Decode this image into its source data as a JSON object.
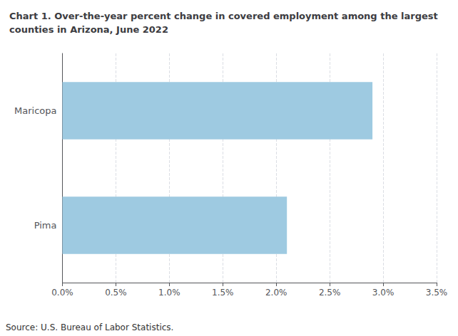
{
  "chart_data": {
    "type": "bar",
    "orientation": "horizontal",
    "title": "Chart 1. Over-the-year percent change in covered employment among the largest\ncounties in Arizona, June 2022",
    "annotations": [
      "Source: U.S. Bureau of Labor Statistics."
    ],
    "categories": [
      "Pima",
      "Maricopa"
    ],
    "values": [
      0.021,
      0.029
    ],
    "color": "#9ECAE1",
    "xlim": [
      0.0,
      0.035
    ],
    "xticks": [
      {
        "value": 0.0,
        "label": "0.0%"
      },
      {
        "value": 0.005,
        "label": "0.5%"
      },
      {
        "value": 0.01,
        "label": "1.0%"
      },
      {
        "value": 0.015,
        "label": "1.5%"
      },
      {
        "value": 0.02,
        "label": "2.0%"
      },
      {
        "value": 0.025,
        "label": "2.5%"
      },
      {
        "value": 0.03,
        "label": "3.0%"
      },
      {
        "value": 0.035,
        "label": "3.5%"
      }
    ],
    "grid": true
  }
}
